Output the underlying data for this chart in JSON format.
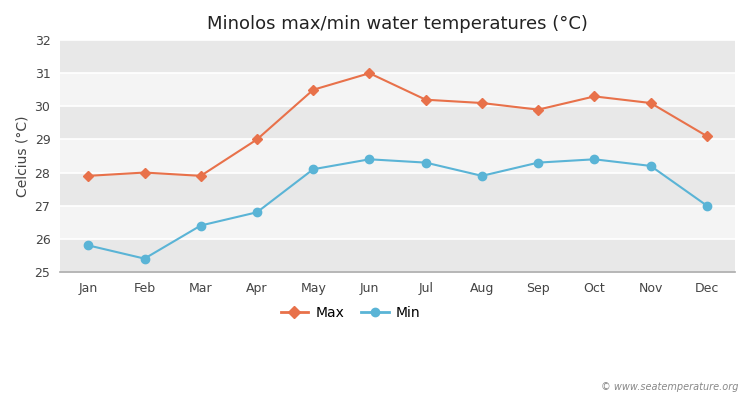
{
  "title": "Minolos max/min water temperatures (°C)",
  "ylabel": "Celcius (°C)",
  "months": [
    "Jan",
    "Feb",
    "Mar",
    "Apr",
    "May",
    "Jun",
    "Jul",
    "Aug",
    "Sep",
    "Oct",
    "Nov",
    "Dec"
  ],
  "max_values": [
    27.9,
    28.0,
    27.9,
    29.0,
    30.5,
    31.0,
    30.2,
    30.1,
    29.9,
    30.3,
    30.1,
    29.1
  ],
  "min_values": [
    25.8,
    25.4,
    26.4,
    26.8,
    28.1,
    28.4,
    28.3,
    27.9,
    28.3,
    28.4,
    28.2,
    27.0
  ],
  "max_color": "#e8714a",
  "min_color": "#5ab4d6",
  "bg_color": "#ffffff",
  "plot_bg_color": "#ffffff",
  "band_color_dark": "#e8e8e8",
  "band_color_light": "#f4f4f4",
  "ylim": [
    25,
    32
  ],
  "yticks": [
    25,
    26,
    27,
    28,
    29,
    30,
    31,
    32
  ],
  "watermark": "© www.seatemperature.org",
  "title_fontsize": 13,
  "label_fontsize": 10,
  "tick_fontsize": 9,
  "legend_fontsize": 10
}
